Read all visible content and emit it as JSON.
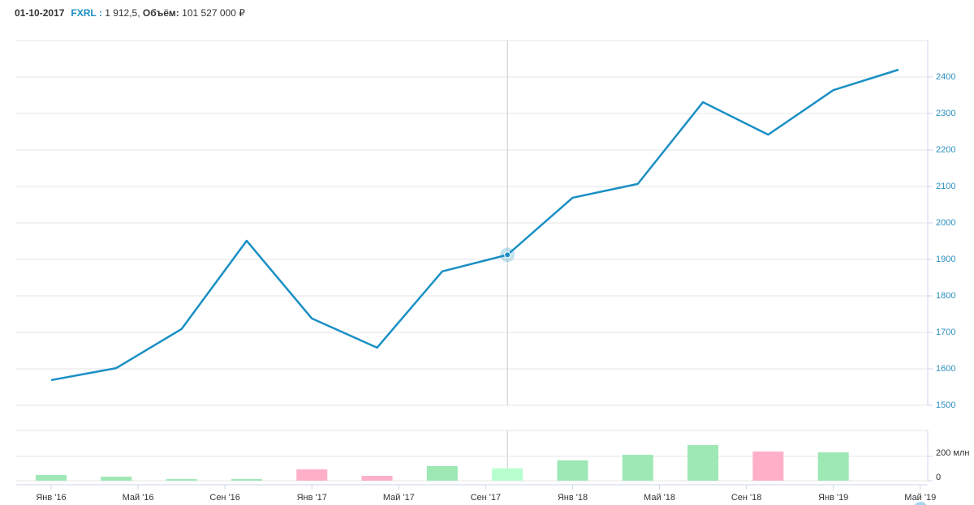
{
  "header": {
    "date": "01-10-2017",
    "ticker": "FXRL :",
    "price": "1 912,5,",
    "volume_label": "Объём:",
    "volume": "101 527 000 ₽"
  },
  "chart_data": [
    {
      "type": "line",
      "x": [
        "2016-01",
        "2016-04",
        "2016-07",
        "2016-10",
        "2017-01",
        "2017-04",
        "2017-07",
        "2017-10",
        "2018-01",
        "2018-04",
        "2018-07",
        "2018-10",
        "2019-01",
        "2019-04"
      ],
      "series": [
        {
          "name": "FXRL",
          "color": "#1a8fc4",
          "values": [
            1569,
            1602,
            1709,
            1951,
            1738,
            1658,
            1867,
            1912.5,
            2069,
            2107,
            2331,
            2242,
            2364,
            2420
          ]
        }
      ],
      "ylim": [
        1500,
        2500
      ],
      "yticks": [
        1500,
        1600,
        1700,
        1800,
        1900,
        2000,
        2100,
        2200,
        2300,
        2400
      ],
      "grid": true,
      "crosshair": "2017-10"
    },
    {
      "type": "bar",
      "x": [
        "2016-01",
        "2016-04",
        "2016-07",
        "2016-10",
        "2017-01",
        "2017-04",
        "2017-07",
        "2017-10",
        "2018-01",
        "2018-04",
        "2018-07",
        "2018-10",
        "2019-01",
        "2019-04"
      ],
      "series": [
        {
          "name": "Объём",
          "values": [
            47,
            33,
            13,
            13,
            93,
            40,
            120,
            101.527,
            167,
            213,
            293,
            240,
            233,
            0
          ]
        }
      ],
      "up_color": "#9de8b5",
      "down_color": "#ffb0c8",
      "highlight_color": "#b8ffcf",
      "ylim": [
        0,
        400
      ],
      "yticks": [
        0,
        {
          "value": 200,
          "label": "200 млн"
        }
      ],
      "xticks": [
        {
          "value": "2016-01",
          "label": "Янв '16"
        },
        {
          "value": "2016-05",
          "label": "Май '16"
        },
        {
          "value": "2016-09",
          "label": "Сен '16"
        },
        {
          "value": "2017-01",
          "label": "Янв '17"
        },
        {
          "value": "2017-05",
          "label": "Май '17"
        },
        {
          "value": "2017-09",
          "label": "Сен '17"
        },
        {
          "value": "2018-01",
          "label": "Янв '18"
        },
        {
          "value": "2018-05",
          "label": "Май '18"
        },
        {
          "value": "2018-09",
          "label": "Сен '18"
        },
        {
          "value": "2019-01",
          "label": "Янв '19"
        },
        {
          "value": "2019-05",
          "label": "Май '19"
        }
      ]
    }
  ]
}
